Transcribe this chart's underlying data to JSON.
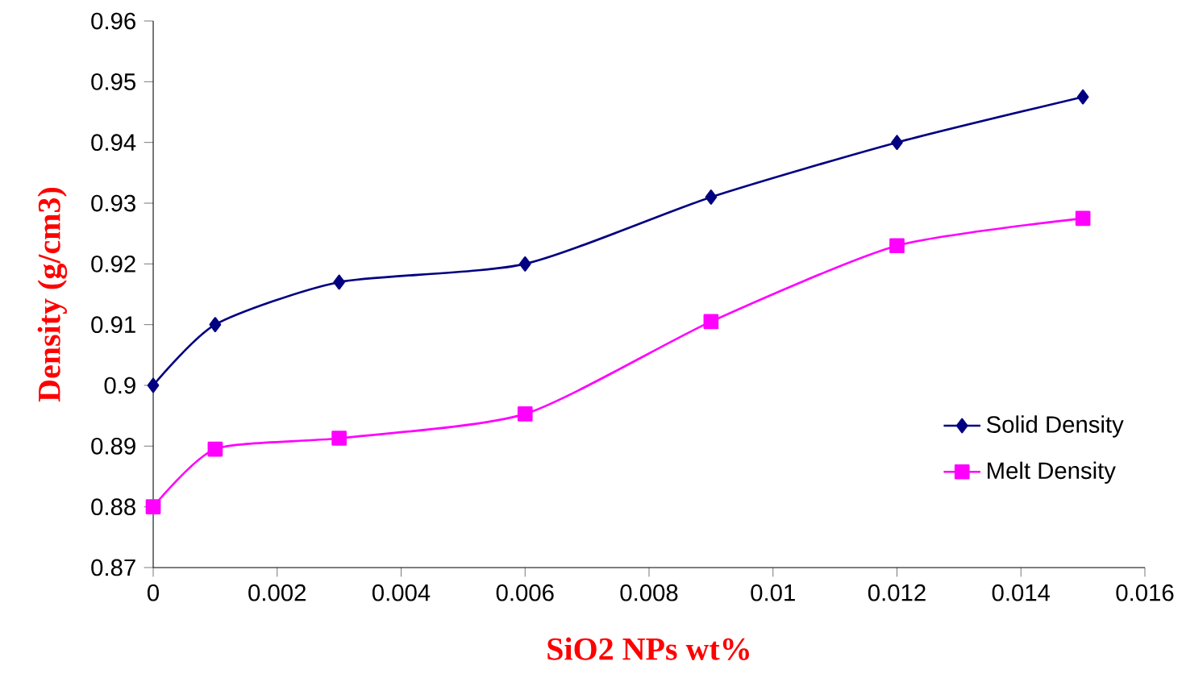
{
  "chart_data": {
    "type": "line",
    "xlabel": "SiO2 NPs wt%",
    "ylabel": "Density (g/cm3)",
    "x": [
      0,
      0.001,
      0.003,
      0.006,
      0.009,
      0.012,
      0.015
    ],
    "series": [
      {
        "name": "Solid Density",
        "color": "#000080",
        "marker": "diamond",
        "values": [
          0.9,
          0.91,
          0.917,
          0.92,
          0.931,
          0.94,
          0.9475
        ]
      },
      {
        "name": "Melt Density",
        "color": "#ff00ff",
        "marker": "square",
        "values": [
          0.88,
          0.8895,
          0.8913,
          0.8953,
          0.9105,
          0.923,
          0.9275
        ]
      }
    ],
    "xlim": [
      0,
      0.016
    ],
    "xticks": [
      0,
      0.002,
      0.004,
      0.006,
      0.008,
      0.01,
      0.012,
      0.014,
      0.016
    ],
    "ylim": [
      0.87,
      0.96
    ],
    "yticks": [
      0.87,
      0.88,
      0.89,
      0.9,
      0.91,
      0.92,
      0.93,
      0.94,
      0.95,
      0.96
    ],
    "grid": false,
    "legend": "bottom right",
    "line_style": "solid"
  }
}
